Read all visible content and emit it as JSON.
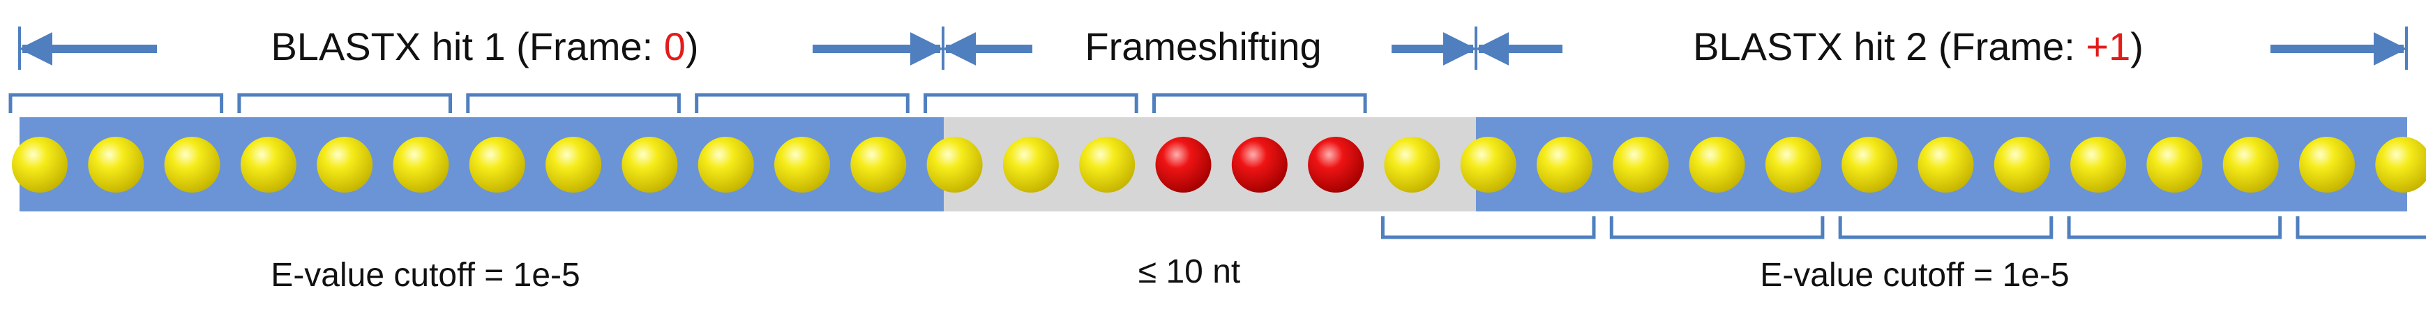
{
  "header": {
    "hit1": {
      "prefix": "BLASTX hit 1 (Frame: ",
      "frame": "0",
      "suffix": ")"
    },
    "frameshift_label": "Frameshifting",
    "hit2": {
      "prefix": "BLASTX hit 2 (Frame: ",
      "frame": "+1",
      "suffix": ")"
    }
  },
  "footer": {
    "left_cutoff": "E-value cutoff = 1e-5",
    "center_gap": "≤ 10 nt",
    "right_cutoff": "E-value cutoff = 1e-5"
  },
  "sequence": {
    "beads": [
      "Y",
      "Y",
      "Y",
      "Y",
      "Y",
      "Y",
      "Y",
      "Y",
      "Y",
      "Y",
      "Y",
      "Y",
      "Y",
      "Y",
      "Y",
      "R",
      "R",
      "R",
      "Y",
      "Y",
      "Y",
      "Y",
      "Y",
      "Y",
      "Y",
      "Y",
      "Y",
      "Y",
      "Y",
      "Y",
      "Y",
      "Y"
    ],
    "regions": [
      {
        "name": "hit-1",
        "start": 0,
        "end": 12
      },
      {
        "name": "frameshift",
        "start": 12,
        "end": 19
      },
      {
        "name": "hit-2",
        "start": 19,
        "end": 32
      }
    ],
    "codons_top": [
      [
        0,
        3
      ],
      [
        3,
        6
      ],
      [
        6,
        9
      ],
      [
        9,
        12
      ],
      [
        12,
        15
      ],
      [
        15,
        18
      ]
    ],
    "codons_bottom": [
      [
        18,
        21
      ],
      [
        21,
        24
      ],
      [
        24,
        27
      ],
      [
        27,
        30
      ],
      [
        30,
        33
      ]
    ]
  },
  "colors": {
    "band_blue": "#6b94d6",
    "band_gray": "#d6d6d6",
    "bracket_blue": "#4f7fbf",
    "bead_yellow": "#f3e400",
    "bead_red": "#e81010",
    "frame_red": "#e31b1b"
  }
}
